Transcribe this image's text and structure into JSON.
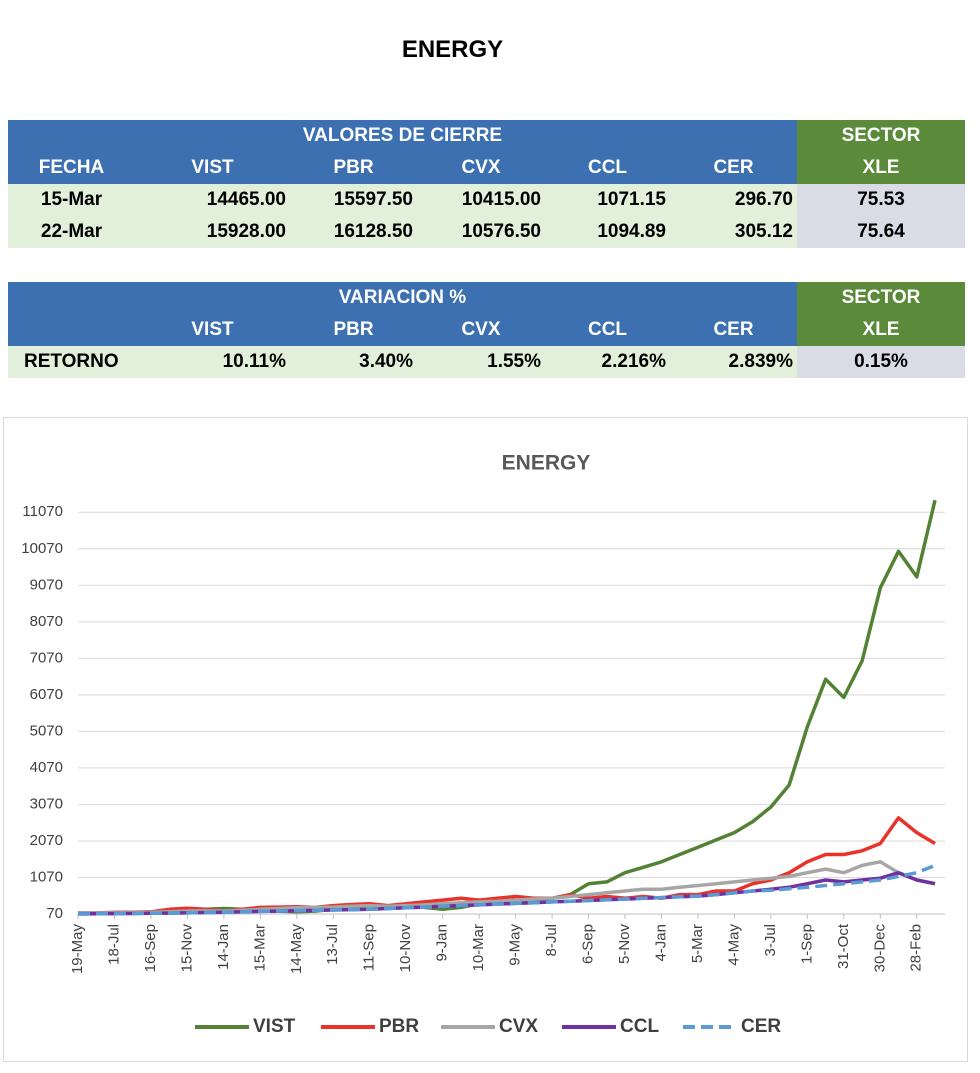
{
  "title": "ENERGY",
  "closing_table": {
    "group_header": "VALORES DE CIERRE",
    "sector_header": "SECTOR",
    "columns": [
      "FECHA",
      "VIST",
      "PBR",
      "CVX",
      "CCL",
      "CER",
      "XLE"
    ],
    "rows": [
      [
        "15-Mar",
        "14465.00",
        "15597.50",
        "10415.00",
        "1071.15",
        "296.70",
        "75.53"
      ],
      [
        "22-Mar",
        "15928.00",
        "16128.50",
        "10576.50",
        "1094.89",
        "305.12",
        "75.64"
      ]
    ]
  },
  "variation_table": {
    "group_header": "VARIACION %",
    "sector_header": "SECTOR",
    "columns": [
      "VIST",
      "PBR",
      "CVX",
      "CCL",
      "CER",
      "XLE"
    ],
    "rows": [
      [
        "RETORNO",
        "10.11%",
        "3.40%",
        "1.55%",
        "2.216%",
        "2.839%",
        "0.15%"
      ]
    ]
  },
  "chart_data": {
    "type": "line",
    "title": "ENERGY",
    "categories": [
      "19-May",
      null,
      "18-Jul",
      null,
      "16-Sep",
      null,
      "15-Nov",
      null,
      "14-Jan",
      null,
      "15-Mar",
      null,
      "14-May",
      null,
      "13-Jul",
      null,
      "11-Sep",
      null,
      "10-Nov",
      null,
      "9-Jan",
      null,
      "10-Mar",
      null,
      "9-May",
      null,
      "8-Jul",
      null,
      "6-Sep",
      null,
      "5-Nov",
      null,
      "4-Jan",
      null,
      "5-Mar",
      null,
      "4-May",
      null,
      "3-Jul",
      null,
      "1-Sep",
      null,
      "31-Oct",
      null,
      "30-Dec",
      null,
      "28-Feb",
      null
    ],
    "ylim": [
      70,
      11570
    ],
    "yticks": [
      70,
      1070,
      2070,
      3070,
      4070,
      5070,
      6070,
      7070,
      8070,
      9070,
      10070,
      11070
    ],
    "grid": true,
    "legend": "bottom",
    "series": [
      {
        "name": "VIST",
        "color": "#548235",
        "dashed": false,
        "values": [
          100,
          100,
          110,
          110,
          120,
          130,
          180,
          200,
          220,
          200,
          150,
          150,
          130,
          150,
          200,
          220,
          250,
          260,
          300,
          250,
          200,
          250,
          350,
          380,
          400,
          450,
          500,
          600,
          900,
          950,
          1200,
          1350,
          1500,
          1700,
          1900,
          2100,
          2300,
          2600,
          3000,
          3600,
          5200,
          6500,
          6000,
          7000,
          9000,
          10000,
          9300,
          11400
        ]
      },
      {
        "name": "PBR",
        "color": "#e8322a",
        "dashed": false,
        "values": [
          100,
          100,
          110,
          120,
          130,
          200,
          230,
          200,
          150,
          200,
          250,
          260,
          270,
          250,
          300,
          330,
          350,
          300,
          350,
          400,
          450,
          500,
          450,
          500,
          550,
          500,
          500,
          600,
          500,
          550,
          500,
          550,
          500,
          600,
          600,
          700,
          700,
          900,
          1000,
          1200,
          1500,
          1700,
          1700,
          1800,
          2000,
          2700,
          2300,
          2000
        ]
      },
      {
        "name": "CVX",
        "color": "#a6a6a6",
        "dashed": false,
        "values": [
          100,
          100,
          100,
          110,
          120,
          130,
          150,
          160,
          150,
          170,
          200,
          220,
          240,
          250,
          260,
          280,
          300,
          280,
          300,
          320,
          350,
          380,
          400,
          420,
          450,
          480,
          500,
          550,
          600,
          650,
          700,
          750,
          750,
          800,
          850,
          900,
          950,
          1000,
          1050,
          1100,
          1200,
          1300,
          1200,
          1400,
          1500,
          1200,
          1000,
          900
        ]
      },
      {
        "name": "CCL",
        "color": "#7030a0",
        "dashed": false,
        "values": [
          70,
          75,
          80,
          85,
          90,
          95,
          100,
          110,
          120,
          130,
          140,
          150,
          160,
          170,
          180,
          190,
          200,
          220,
          240,
          260,
          280,
          300,
          320,
          340,
          360,
          380,
          400,
          420,
          440,
          460,
          480,
          500,
          520,
          540,
          560,
          600,
          650,
          700,
          750,
          800,
          900,
          1000,
          950,
          1000,
          1050,
          1200,
          1000,
          900
        ]
      },
      {
        "name": "CER",
        "color": "#5b9bd5",
        "dashed": true,
        "values": [
          70,
          75,
          80,
          85,
          90,
          95,
          100,
          110,
          120,
          130,
          140,
          150,
          160,
          170,
          180,
          190,
          200,
          220,
          240,
          260,
          280,
          300,
          320,
          340,
          360,
          380,
          400,
          420,
          440,
          460,
          480,
          500,
          520,
          540,
          560,
          600,
          650,
          700,
          720,
          760,
          800,
          850,
          900,
          950,
          1000,
          1100,
          1200,
          1400
        ]
      }
    ]
  }
}
